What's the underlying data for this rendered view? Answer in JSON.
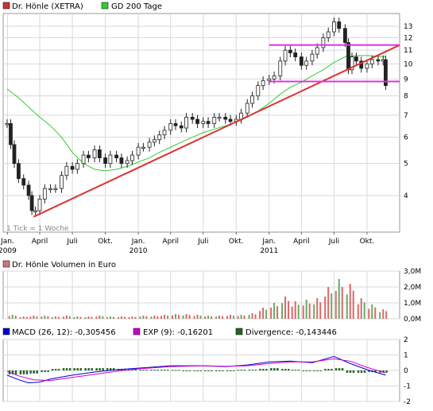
{
  "chart_data": [
    {
      "type": "candlestick",
      "legend": [
        "Dr. Hönle (XETRA)",
        "GD 200 Tage"
      ],
      "series": [
        {
          "name": "Dr. Hönle (XETRA)",
          "color": "#cc3333",
          "values": [
            {
              "x": "2008-12-31",
              "y": 6.6
            },
            {
              "x": "2009-01-10",
              "y": 5.7
            },
            {
              "x": "2009-01-20",
              "y": 5.0
            },
            {
              "x": "2009-02-01",
              "y": 4.5
            },
            {
              "x": "2009-02-15",
              "y": 4.3
            },
            {
              "x": "2009-03-01",
              "y": 4.0
            },
            {
              "x": "2009-03-10",
              "y": 3.6
            },
            {
              "x": "2009-03-20",
              "y": 3.6
            },
            {
              "x": "2009-04-01",
              "y": 3.9
            },
            {
              "x": "2009-04-15",
              "y": 4.2
            },
            {
              "x": "2009-05-01",
              "y": 4.2
            },
            {
              "x": "2009-05-15",
              "y": 4.2
            },
            {
              "x": "2009-06-01",
              "y": 4.6
            },
            {
              "x": "2009-06-15",
              "y": 4.9
            },
            {
              "x": "2009-07-01",
              "y": 4.8
            },
            {
              "x": "2009-07-15",
              "y": 5.0
            },
            {
              "x": "2009-08-01",
              "y": 5.3
            },
            {
              "x": "2009-08-15",
              "y": 5.2
            },
            {
              "x": "2009-09-01",
              "y": 5.5
            },
            {
              "x": "2009-09-15",
              "y": 5.2
            },
            {
              "x": "2009-10-01",
              "y": 5.0
            },
            {
              "x": "2009-10-15",
              "y": 5.3
            },
            {
              "x": "2009-11-01",
              "y": 5.2
            },
            {
              "x": "2009-11-15",
              "y": 5.0
            },
            {
              "x": "2009-12-01",
              "y": 5.1
            },
            {
              "x": "2009-12-15",
              "y": 5.3
            },
            {
              "x": "2010-01-01",
              "y": 5.6
            },
            {
              "x": "2010-01-15",
              "y": 5.6
            },
            {
              "x": "2010-02-01",
              "y": 5.8
            },
            {
              "x": "2010-02-15",
              "y": 5.9
            },
            {
              "x": "2010-03-01",
              "y": 6.1
            },
            {
              "x": "2010-03-15",
              "y": 6.3
            },
            {
              "x": "2010-04-01",
              "y": 6.6
            },
            {
              "x": "2010-04-15",
              "y": 6.5
            },
            {
              "x": "2010-05-01",
              "y": 6.4
            },
            {
              "x": "2010-05-15",
              "y": 6.9
            },
            {
              "x": "2010-06-01",
              "y": 6.8
            },
            {
              "x": "2010-06-15",
              "y": 6.6
            },
            {
              "x": "2010-07-01",
              "y": 6.7
            },
            {
              "x": "2010-07-15",
              "y": 6.6
            },
            {
              "x": "2010-08-01",
              "y": 6.9
            },
            {
              "x": "2010-08-15",
              "y": 6.9
            },
            {
              "x": "2010-09-01",
              "y": 6.8
            },
            {
              "x": "2010-09-15",
              "y": 6.7
            },
            {
              "x": "2010-10-01",
              "y": 6.8
            },
            {
              "x": "2010-10-15",
              "y": 7.1
            },
            {
              "x": "2010-11-01",
              "y": 7.6
            },
            {
              "x": "2010-11-15",
              "y": 8.0
            },
            {
              "x": "2010-12-01",
              "y": 8.6
            },
            {
              "x": "2010-12-15",
              "y": 8.9
            },
            {
              "x": "2011-01-01",
              "y": 9.0
            },
            {
              "x": "2011-01-15",
              "y": 9.2
            },
            {
              "x": "2011-02-01",
              "y": 10.2
            },
            {
              "x": "2011-02-15",
              "y": 11.0
            },
            {
              "x": "2011-03-01",
              "y": 10.8
            },
            {
              "x": "2011-03-15",
              "y": 10.5
            },
            {
              "x": "2011-04-01",
              "y": 9.9
            },
            {
              "x": "2011-04-15",
              "y": 10.2
            },
            {
              "x": "2011-05-01",
              "y": 10.7
            },
            {
              "x": "2011-05-15",
              "y": 11.2
            },
            {
              "x": "2011-06-01",
              "y": 12.0
            },
            {
              "x": "2011-06-15",
              "y": 12.5
            },
            {
              "x": "2011-07-01",
              "y": 13.4
            },
            {
              "x": "2011-07-15",
              "y": 12.8
            },
            {
              "x": "2011-08-01",
              "y": 11.6
            },
            {
              "x": "2011-08-10",
              "y": 9.6
            },
            {
              "x": "2011-08-20",
              "y": 10.5
            },
            {
              "x": "2011-09-01",
              "y": 10.2
            },
            {
              "x": "2011-09-15",
              "y": 9.7
            },
            {
              "x": "2011-10-01",
              "y": 10.0
            },
            {
              "x": "2011-10-15",
              "y": 10.3
            },
            {
              "x": "2011-11-01",
              "y": 10.2
            },
            {
              "x": "2011-11-15",
              "y": 10.3
            },
            {
              "x": "2011-11-22",
              "y": 8.6
            }
          ]
        },
        {
          "name": "GD 200 Tage",
          "color": "#33cc33",
          "values": [
            {
              "x": "2008-12-31",
              "y": 8.4
            },
            {
              "x": "2009-02-01",
              "y": 7.9
            },
            {
              "x": "2009-03-01",
              "y": 7.4
            },
            {
              "x": "2009-04-01",
              "y": 6.9
            },
            {
              "x": "2009-05-01",
              "y": 6.5
            },
            {
              "x": "2009-06-01",
              "y": 6.0
            },
            {
              "x": "2009-07-01",
              "y": 5.4
            },
            {
              "x": "2009-08-01",
              "y": 5.0
            },
            {
              "x": "2009-09-01",
              "y": 4.8
            },
            {
              "x": "2009-10-01",
              "y": 4.75
            },
            {
              "x": "2009-11-01",
              "y": 4.8
            },
            {
              "x": "2009-12-01",
              "y": 4.9
            },
            {
              "x": "2010-01-01",
              "y": 5.05
            },
            {
              "x": "2010-02-01",
              "y": 5.2
            },
            {
              "x": "2010-03-01",
              "y": 5.4
            },
            {
              "x": "2010-04-01",
              "y": 5.6
            },
            {
              "x": "2010-05-01",
              "y": 5.8
            },
            {
              "x": "2010-06-01",
              "y": 6.0
            },
            {
              "x": "2010-07-01",
              "y": 6.2
            },
            {
              "x": "2010-08-01",
              "y": 6.35
            },
            {
              "x": "2010-09-01",
              "y": 6.5
            },
            {
              "x": "2010-10-01",
              "y": 6.65
            },
            {
              "x": "2010-11-01",
              "y": 6.9
            },
            {
              "x": "2010-12-01",
              "y": 7.2
            },
            {
              "x": "2011-01-01",
              "y": 7.6
            },
            {
              "x": "2011-02-01",
              "y": 8.1
            },
            {
              "x": "2011-03-01",
              "y": 8.5
            },
            {
              "x": "2011-04-01",
              "y": 8.8
            },
            {
              "x": "2011-05-01",
              "y": 9.2
            },
            {
              "x": "2011-06-01",
              "y": 9.6
            },
            {
              "x": "2011-07-01",
              "y": 10.1
            },
            {
              "x": "2011-08-01",
              "y": 10.5
            },
            {
              "x": "2011-09-01",
              "y": 10.6
            },
            {
              "x": "2011-10-01",
              "y": 10.6
            },
            {
              "x": "2011-11-22",
              "y": 10.5
            }
          ]
        }
      ],
      "trend_lines": [
        {
          "color": "#dd3333",
          "points": [
            {
              "x": "2009-03-15",
              "y": 3.45
            },
            {
              "x": "2011-12-31",
              "y": 11.4
            }
          ]
        },
        {
          "color": "#dd33dd",
          "points": [
            {
              "x": "2011-01-01",
              "y": 11.4
            },
            {
              "x": "2011-12-31",
              "y": 11.4
            }
          ]
        },
        {
          "color": "#dd33dd",
          "points": [
            {
              "x": "2011-01-01",
              "y": 8.85
            },
            {
              "x": "2011-12-31",
              "y": 8.85
            }
          ]
        }
      ],
      "y_scale": "log",
      "ylim": [
        3.1,
        14.2
      ],
      "yticks": [
        {
          "value": 4,
          "label": "4"
        },
        {
          "value": 5,
          "label": "5"
        },
        {
          "value": 6,
          "label": "6"
        },
        {
          "value": 7,
          "label": "7"
        },
        {
          "value": 8,
          "label": "8"
        },
        {
          "value": 9,
          "label": "9"
        },
        {
          "value": 10,
          "label": "10"
        },
        {
          "value": 11,
          "label": "11"
        },
        {
          "value": 12,
          "label": "12"
        },
        {
          "value": 13,
          "label": "13"
        }
      ],
      "xlim": [
        "2008-12-20",
        "2011-12-31"
      ],
      "xticks": [
        {
          "x": "2009-01-01",
          "label": "Jan.",
          "sub": "2009"
        },
        {
          "x": "2009-04-01",
          "label": "April",
          "sub": ""
        },
        {
          "x": "2009-07-01",
          "label": "Juli",
          "sub": ""
        },
        {
          "x": "2009-10-01",
          "label": "Okt.",
          "sub": ""
        },
        {
          "x": "2010-01-01",
          "label": "Jan.",
          "sub": "2010"
        },
        {
          "x": "2010-04-01",
          "label": "April",
          "sub": ""
        },
        {
          "x": "2010-07-01",
          "label": "Juli",
          "sub": ""
        },
        {
          "x": "2010-10-01",
          "label": "Okt.",
          "sub": ""
        },
        {
          "x": "2011-01-01",
          "label": "Jan.",
          "sub": "2011"
        },
        {
          "x": "2011-04-01",
          "label": "April",
          "sub": ""
        },
        {
          "x": "2011-07-01",
          "label": "Juli",
          "sub": ""
        },
        {
          "x": "2011-10-01",
          "label": "Okt.",
          "sub": ""
        }
      ],
      "note": "1 Tick = 1 Woche",
      "grid": true
    },
    {
      "type": "bar",
      "legend": [
        "Dr. Hönle Volumen in Euro"
      ],
      "color_up": "#dd6666",
      "color_down": "#66aa66",
      "x": [
        "2009-01",
        "2009-02",
        "2009-03",
        "2009-04",
        "2009-05",
        "2009-06",
        "2009-07",
        "2009-08",
        "2009-09",
        "2009-10",
        "2009-11",
        "2009-12",
        "2010-01",
        "2010-02",
        "2010-03",
        "2010-04",
        "2010-05",
        "2010-06",
        "2010-07",
        "2010-08",
        "2010-09",
        "2010-10",
        "2010-11",
        "2010-12",
        "2011-01",
        "2011-02",
        "2011-03",
        "2011-04",
        "2011-05",
        "2011-06",
        "2011-07",
        "2011-08",
        "2011-09",
        "2011-10",
        "2011-11"
      ],
      "values": [
        0.25,
        0.15,
        0.2,
        0.2,
        0.15,
        0.2,
        0.15,
        0.15,
        0.2,
        0.15,
        0.15,
        0.15,
        0.2,
        0.2,
        0.25,
        0.3,
        0.3,
        0.25,
        0.2,
        0.2,
        0.25,
        0.25,
        0.35,
        0.7,
        1.0,
        1.4,
        1.1,
        1.2,
        1.3,
        2.0,
        2.5,
        2.2,
        1.3,
        0.9,
        0.6
      ],
      "ylim": [
        0,
        3.0
      ],
      "yticks": [
        {
          "value": 0,
          "label": "0,0M"
        },
        {
          "value": 1,
          "label": "1,0M"
        },
        {
          "value": 2,
          "label": "2,0M"
        },
        {
          "value": 3,
          "label": "3,0M"
        }
      ],
      "grid": true
    },
    {
      "type": "line",
      "legend": [
        "MACD (26, 12): -0,305456",
        "EXP (9): -0,16201",
        "Divergence: -0,143446"
      ],
      "series": [
        {
          "name": "MACD",
          "color": "#0000cc",
          "values": [
            {
              "x": "2008-12-31",
              "y": -0.3
            },
            {
              "x": "2009-02-01",
              "y": -0.6
            },
            {
              "x": "2009-03-01",
              "y": -0.8
            },
            {
              "x": "2009-04-01",
              "y": -0.75
            },
            {
              "x": "2009-05-01",
              "y": -0.55
            },
            {
              "x": "2009-07-01",
              "y": -0.3
            },
            {
              "x": "2009-09-01",
              "y": -0.1
            },
            {
              "x": "2009-11-01",
              "y": 0.05
            },
            {
              "x": "2010-01-01",
              "y": 0.15
            },
            {
              "x": "2010-04-01",
              "y": 0.3
            },
            {
              "x": "2010-07-01",
              "y": 0.3
            },
            {
              "x": "2010-09-01",
              "y": 0.25
            },
            {
              "x": "2010-11-01",
              "y": 0.35
            },
            {
              "x": "2011-01-01",
              "y": 0.55
            },
            {
              "x": "2011-03-01",
              "y": 0.6
            },
            {
              "x": "2011-05-01",
              "y": 0.5
            },
            {
              "x": "2011-07-01",
              "y": 0.9
            },
            {
              "x": "2011-08-15",
              "y": 0.45
            },
            {
              "x": "2011-10-01",
              "y": 0.05
            },
            {
              "x": "2011-11-22",
              "y": -0.3
            }
          ]
        },
        {
          "name": "EXP",
          "color": "#cc00cc",
          "values": [
            {
              "x": "2008-12-31",
              "y": -0.05
            },
            {
              "x": "2009-02-01",
              "y": -0.35
            },
            {
              "x": "2009-03-15",
              "y": -0.6
            },
            {
              "x": "2009-05-01",
              "y": -0.65
            },
            {
              "x": "2009-07-01",
              "y": -0.45
            },
            {
              "x": "2009-09-01",
              "y": -0.25
            },
            {
              "x": "2009-11-01",
              "y": -0.05
            },
            {
              "x": "2010-01-01",
              "y": 0.1
            },
            {
              "x": "2010-04-01",
              "y": 0.25
            },
            {
              "x": "2010-07-01",
              "y": 0.3
            },
            {
              "x": "2010-09-01",
              "y": 0.27
            },
            {
              "x": "2010-11-01",
              "y": 0.3
            },
            {
              "x": "2011-01-01",
              "y": 0.45
            },
            {
              "x": "2011-03-01",
              "y": 0.55
            },
            {
              "x": "2011-05-01",
              "y": 0.55
            },
            {
              "x": "2011-07-01",
              "y": 0.75
            },
            {
              "x": "2011-08-15",
              "y": 0.6
            },
            {
              "x": "2011-10-01",
              "y": 0.2
            },
            {
              "x": "2011-11-22",
              "y": -0.16
            }
          ]
        }
      ],
      "divergence": {
        "name": "Divergence",
        "color": "#226622",
        "values": [
          -0.25,
          -0.25,
          -0.2,
          -0.1,
          0.1,
          0.15,
          0.15,
          0.15,
          0.15,
          0.15,
          0.1,
          0.08,
          0.05,
          0.05,
          0.05,
          0.03,
          0.0,
          0.0,
          -0.02,
          -0.02,
          0.0,
          0.05,
          0.05,
          0.1,
          0.15,
          0.1,
          0.05,
          0.0,
          -0.05,
          0.1,
          0.15,
          -0.15,
          -0.15,
          -0.1,
          -0.14
        ]
      },
      "ylim": [
        -2,
        2
      ],
      "yticks": [
        {
          "value": 2,
          "label": "2"
        },
        {
          "value": 1,
          "label": "1"
        },
        {
          "value": 0,
          "label": "0"
        },
        {
          "value": -1,
          "label": "-1"
        },
        {
          "value": -2,
          "label": "-2"
        }
      ],
      "grid": true
    }
  ]
}
